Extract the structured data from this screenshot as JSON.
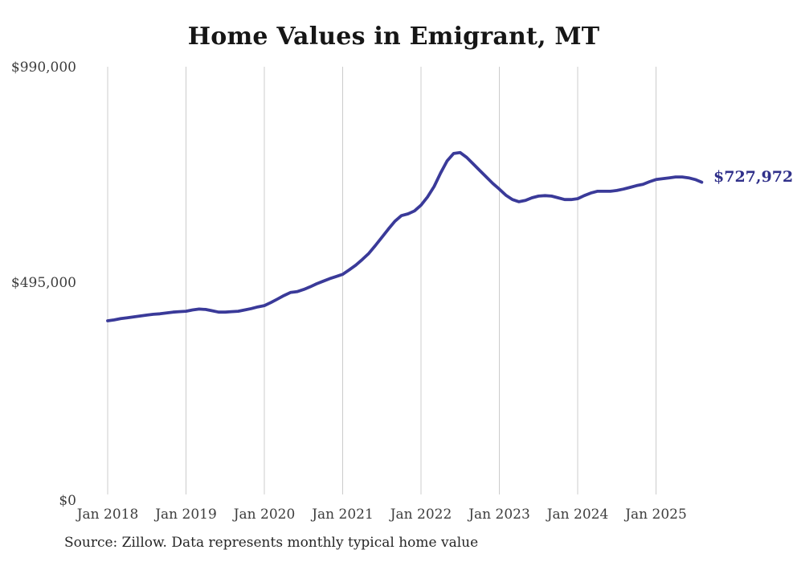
{
  "title": "Home Values in Emigrant, MT",
  "source_note": "Source: Zillow. Data represents monthly typical home value",
  "colors": {
    "line": "#3a3a99",
    "end_label_text": "#30308a",
    "gridline": "#cccccc",
    "axis_text": "#3d3d3d",
    "title_text": "#161616",
    "source_text": "#262626",
    "background": "#ffffff"
  },
  "y_axis": {
    "ticks": [
      "$990,000",
      "$495,000",
      "$0"
    ],
    "min": 0,
    "max": 990000
  },
  "x_axis": {
    "ticks": [
      "Jan 2018",
      "Jan 2019",
      "Jan 2020",
      "Jan 2021",
      "Jan 2022",
      "Jan 2023",
      "Jan 2024",
      "Jan 2025"
    ]
  },
  "chart_data": {
    "type": "line",
    "title": "Home Values in Emigrant, MT",
    "xlabel": "",
    "ylabel": "",
    "ylim": [
      0,
      990000
    ],
    "grid": "vertical-only",
    "legend": "none",
    "end_label": "$727,972",
    "end_value": 727972,
    "x": [
      "2018-01",
      "2018-02",
      "2018-03",
      "2018-04",
      "2018-05",
      "2018-06",
      "2018-07",
      "2018-08",
      "2018-09",
      "2018-10",
      "2018-11",
      "2018-12",
      "2019-01",
      "2019-02",
      "2019-03",
      "2019-04",
      "2019-05",
      "2019-06",
      "2019-07",
      "2019-08",
      "2019-09",
      "2019-10",
      "2019-11",
      "2019-12",
      "2020-01",
      "2020-02",
      "2020-03",
      "2020-04",
      "2020-05",
      "2020-06",
      "2020-07",
      "2020-08",
      "2020-09",
      "2020-10",
      "2020-11",
      "2020-12",
      "2021-01",
      "2021-02",
      "2021-03",
      "2021-04",
      "2021-05",
      "2021-06",
      "2021-07",
      "2021-08",
      "2021-09",
      "2021-10",
      "2021-11",
      "2021-12",
      "2022-01",
      "2022-02",
      "2022-03",
      "2022-04",
      "2022-05",
      "2022-06",
      "2022-07",
      "2022-08",
      "2022-09",
      "2022-10",
      "2022-11",
      "2022-12",
      "2023-01",
      "2023-02",
      "2023-03",
      "2023-04",
      "2023-05",
      "2023-06",
      "2023-07",
      "2023-08",
      "2023-09",
      "2023-10",
      "2023-11",
      "2023-12",
      "2024-01",
      "2024-02",
      "2024-03",
      "2024-04",
      "2024-05",
      "2024-06",
      "2024-07",
      "2024-08",
      "2024-09",
      "2024-10",
      "2024-11",
      "2024-12",
      "2025-01",
      "2025-02",
      "2025-03",
      "2025-04",
      "2025-05",
      "2025-06",
      "2025-07",
      "2025-08"
    ],
    "values": [
      409000,
      411000,
      414000,
      416000,
      418000,
      420000,
      422000,
      424000,
      425000,
      427000,
      429000,
      430000,
      431000,
      434000,
      436000,
      435000,
      432000,
      429000,
      429000,
      430000,
      431000,
      434000,
      437000,
      441000,
      444000,
      451000,
      459000,
      467000,
      474000,
      476000,
      481000,
      487000,
      494000,
      500000,
      506000,
      511000,
      516000,
      526000,
      537000,
      550000,
      564000,
      582000,
      601000,
      620000,
      638000,
      651000,
      655000,
      662000,
      675000,
      694000,
      718000,
      749000,
      777000,
      794000,
      796000,
      785000,
      770000,
      755000,
      740000,
      725000,
      712000,
      698000,
      688000,
      683000,
      686000,
      692000,
      696000,
      697000,
      696000,
      692000,
      688000,
      688000,
      690000,
      697000,
      703000,
      707000,
      707000,
      707000,
      709000,
      712000,
      716000,
      720000,
      723000,
      729000,
      734000,
      736000,
      738000,
      740000,
      740000,
      738000,
      734000,
      727972
    ]
  }
}
